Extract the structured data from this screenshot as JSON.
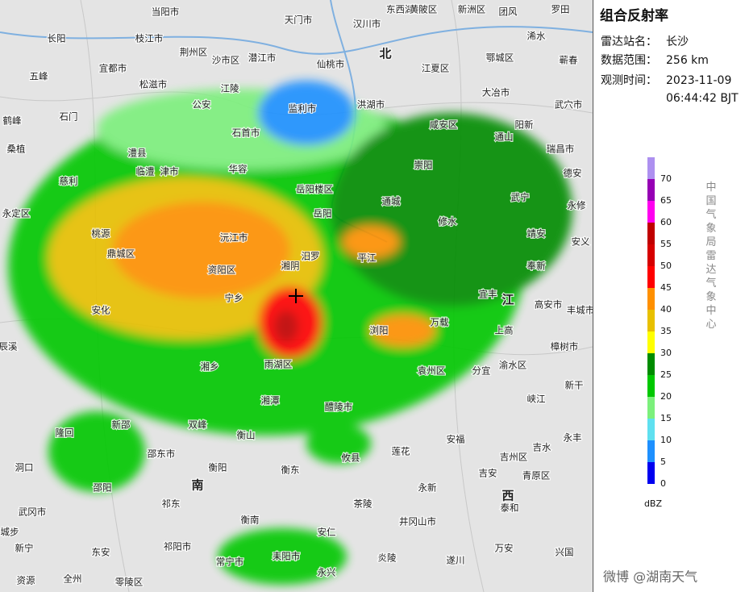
{
  "title": "组合反射率",
  "info": [
    {
      "label": "雷达站名：",
      "lines": [
        "长沙"
      ]
    },
    {
      "label": "数据范围：",
      "lines": [
        "256 km"
      ]
    },
    {
      "label": "观测时间：",
      "lines": [
        "2023-11-09",
        "06:44:42 BJT"
      ]
    }
  ],
  "legend": {
    "unit": "dBZ",
    "items": [
      {
        "value": 70,
        "color": "#ad90f0"
      },
      {
        "value": 65,
        "color": "#9600b4"
      },
      {
        "value": 60,
        "color": "#ff00f0"
      },
      {
        "value": 55,
        "color": "#c00000"
      },
      {
        "value": 50,
        "color": "#d60000"
      },
      {
        "value": 45,
        "color": "#ff0000"
      },
      {
        "value": 40,
        "color": "#ff9000"
      },
      {
        "value": 35,
        "color": "#e8c000"
      },
      {
        "value": 30,
        "color": "#ffff00"
      },
      {
        "value": 25,
        "color": "#008c00"
      },
      {
        "value": 20,
        "color": "#00c800"
      },
      {
        "value": 15,
        "color": "#7cf07c"
      },
      {
        "value": 10,
        "color": "#5fe0f0"
      },
      {
        "value": 5,
        "color": "#1e90ff"
      },
      {
        "value": 0,
        "color": "#0000f0"
      }
    ]
  },
  "source": "中国气象局雷达气象中心",
  "places": [
    "长阳",
    "当阳市",
    "枝江市",
    "荆州区",
    "沙市区",
    "潜江市",
    "天门市",
    "汉川市",
    "东西湖区",
    "黄陂区",
    "新洲区",
    "团风",
    "罗田",
    "仙桃市",
    "江夏区",
    "鄂城区",
    "浠水",
    "蕲春",
    "五峰",
    "宜都市",
    "松滋市",
    "江陵",
    "洪湖市",
    "咸安区",
    "大冶市",
    "武穴市",
    "石门",
    "公安",
    "监利市",
    "鹤峰",
    "桑植",
    "澧县",
    "石首市",
    "通山",
    "阳新",
    "瑞昌市",
    "临澧",
    "津市",
    "华容",
    "崇阳",
    "德安",
    "慈利",
    "岳阳楼区",
    "通城",
    "武宁",
    "永修",
    "永定区",
    "岳阳",
    "平江",
    "修水",
    "靖安",
    "安义",
    "桃源",
    "鼎城区",
    "沅江市",
    "湘阴",
    "汨罗",
    "宜丰",
    "奉新",
    "资阳区",
    "宁乡",
    "浏阳",
    "万载",
    "上高",
    "高安市",
    "丰城市",
    "安化",
    "湘乡",
    "雨湖区",
    "湘潭",
    "醴陵市",
    "袁州区",
    "分宜",
    "渝水区",
    "樟树市",
    "新干",
    "峡江",
    "辰溪",
    "洞口",
    "隆回",
    "新邵",
    "双峰",
    "衡山",
    "攸县",
    "莲花",
    "安福",
    "吉水",
    "永丰",
    "邵东市",
    "衡阳",
    "衡东",
    "茶陵",
    "永新",
    "吉安",
    "吉州区",
    "青原区",
    "邵阳",
    "武冈市",
    "衡南",
    "井冈山市",
    "泰和",
    "城步",
    "祁东",
    "新宁",
    "东安",
    "祁阳市",
    "安仁",
    "炎陵",
    "遂川",
    "万安",
    "兴国",
    "资源",
    "全州",
    "零陵区",
    "常宁市",
    "耒阳市",
    "永兴",
    "北",
    "南",
    "江",
    "西"
  ],
  "watermark": "微博 @湖南天气"
}
